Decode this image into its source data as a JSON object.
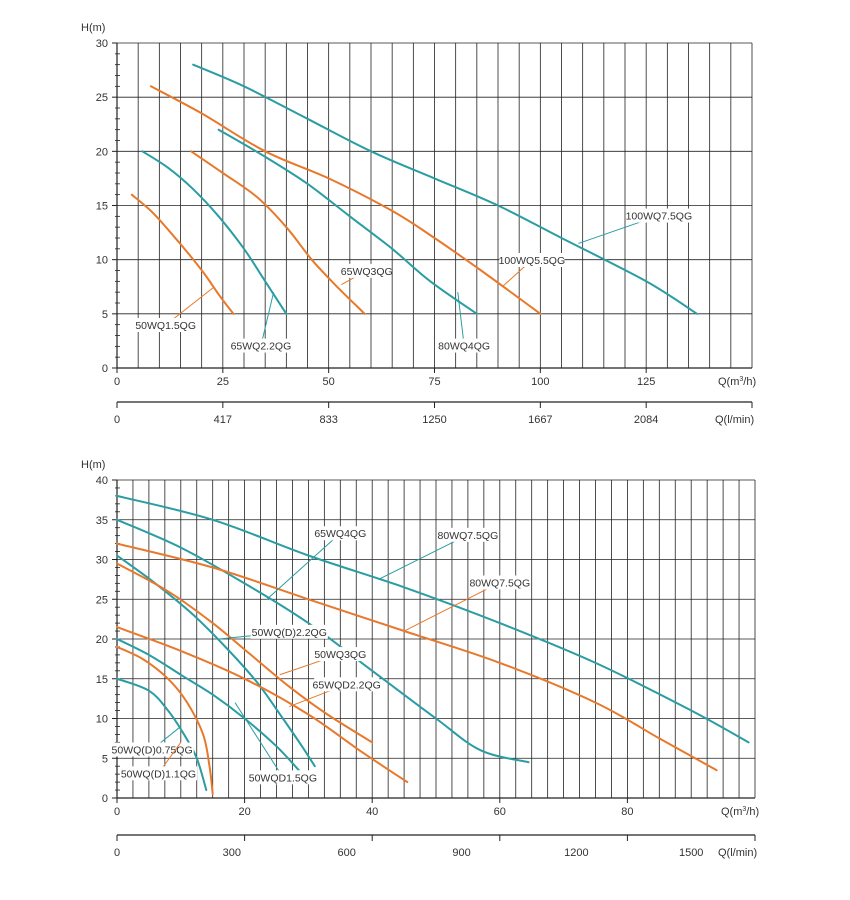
{
  "colors": {
    "teal": "#2a9da3",
    "orange": "#e8792b",
    "grid": "#222222",
    "text": "#333333"
  },
  "chart_data": [
    {
      "type": "line",
      "ylabel": "H(m)",
      "xlabel": "Q(m³/h)",
      "xlim": [
        0,
        150
      ],
      "ylim": [
        0,
        30
      ],
      "x_major_ticks": [
        0,
        25,
        50,
        75,
        100,
        125
      ],
      "y_major_ticks": [
        0,
        5,
        10,
        15,
        20,
        25,
        30
      ],
      "grid": true,
      "secondary_axis": {
        "label": "Q(l/min)",
        "ticks": [
          {
            "q": 0,
            "label": "0"
          },
          {
            "q": 25,
            "label": "417"
          },
          {
            "q": 50,
            "label": "833"
          },
          {
            "q": 75,
            "label": "1250"
          },
          {
            "q": 100,
            "label": "1667"
          },
          {
            "q": 125,
            "label": "2084"
          }
        ]
      },
      "series": [
        {
          "name": "50WQ1.5QG",
          "color": "orange",
          "points": [
            [
              3.5,
              16
            ],
            [
              8,
              14.5
            ],
            [
              12,
              12.8
            ],
            [
              17,
              10.5
            ],
            [
              21,
              8.5
            ],
            [
              24,
              6.8
            ],
            [
              27.5,
              5
            ]
          ],
          "label": {
            "text": "50WQ1.5QG",
            "at": [
              11.5,
              3.6
            ],
            "anchor_to": [
              23,
              7.5
            ]
          }
        },
        {
          "name": "65WQ2.2QG",
          "color": "teal",
          "points": [
            [
              6,
              20
            ],
            [
              12,
              18.5
            ],
            [
              18,
              16.5
            ],
            [
              24,
              14
            ],
            [
              30,
              11
            ],
            [
              35,
              8
            ],
            [
              40,
              5
            ]
          ],
          "label": {
            "text": "65WQ2.2QG",
            "at": [
              34,
              1.7
            ],
            "anchor_to": [
              37,
              7
            ]
          }
        },
        {
          "name": "65WQ3QG",
          "color": "orange",
          "points": [
            [
              17.5,
              20
            ],
            [
              25,
              18
            ],
            [
              33,
              15.8
            ],
            [
              40,
              13
            ],
            [
              46,
              10
            ],
            [
              52,
              7.5
            ],
            [
              58.5,
              5
            ]
          ],
          "label": {
            "text": "65WQ3QG",
            "at": [
              59,
              8.6
            ],
            "anchor_to": [
              53,
              7.7
            ]
          }
        },
        {
          "name": "80WQ4QG",
          "color": "teal",
          "points": [
            [
              24,
              22
            ],
            [
              35,
              19.5
            ],
            [
              45,
              17
            ],
            [
              55,
              14
            ],
            [
              65,
              11
            ],
            [
              74,
              8
            ],
            [
              85,
              5
            ]
          ],
          "label": {
            "text": "80WQ4QG",
            "at": [
              82,
              1.7
            ],
            "anchor_to": [
              80.5,
              7
            ]
          }
        },
        {
          "name": "100WQ5.5QG",
          "color": "orange",
          "points": [
            [
              8,
              26
            ],
            [
              20,
              23.5
            ],
            [
              35,
              20
            ],
            [
              50,
              17.5
            ],
            [
              65,
              14.5
            ],
            [
              75,
              12
            ],
            [
              86,
              9
            ],
            [
              100,
              5
            ]
          ],
          "label": {
            "text": "100WQ5.5QG",
            "at": [
              98,
              9.6
            ],
            "anchor_to": [
              91,
              7.5
            ]
          }
        },
        {
          "name": "100WQ7.5QG",
          "color": "teal",
          "points": [
            [
              18,
              28
            ],
            [
              30,
              26
            ],
            [
              45,
              23
            ],
            [
              60,
              20
            ],
            [
              75,
              17.5
            ],
            [
              90,
              15
            ],
            [
              105,
              12
            ],
            [
              125,
              8
            ],
            [
              137,
              5
            ]
          ],
          "label": {
            "text": "100WQ7.5QG",
            "at": [
              128,
              13.7
            ],
            "anchor_to": [
              109,
              11.5
            ]
          }
        }
      ]
    },
    {
      "type": "line",
      "ylabel": "H(m)",
      "xlabel": "Q(m³/h)",
      "xlim": [
        0,
        100
      ],
      "ylim": [
        0,
        40
      ],
      "x_major_ticks": [
        0,
        20,
        40,
        60,
        80
      ],
      "y_major_ticks": [
        0,
        5,
        10,
        15,
        20,
        25,
        30,
        35,
        40
      ],
      "grid": true,
      "secondary_axis": {
        "label": "Q(l/min)",
        "ticks": [
          {
            "q": 0,
            "label": "0"
          },
          {
            "q": 18,
            "label": "300"
          },
          {
            "q": 36,
            "label": "600"
          },
          {
            "q": 54,
            "label": "900"
          },
          {
            "q": 72,
            "label": "1200"
          },
          {
            "q": 90,
            "label": "1500"
          }
        ]
      },
      "series": [
        {
          "name": "50WQ(D)0.75QG",
          "color": "teal",
          "points": [
            [
              0,
              15
            ],
            [
              5,
              13.5
            ],
            [
              8,
              11
            ],
            [
              10.5,
              8
            ],
            [
              12.5,
              5
            ],
            [
              14,
              1
            ]
          ],
          "label": {
            "text": "50WQ(D)0.75QG",
            "at": [
              5.5,
              5.6
            ],
            "anchor_to": [
              10,
              9
            ]
          }
        },
        {
          "name": "50WQ(D)1.1QG",
          "color": "orange",
          "points": [
            [
              0,
              19
            ],
            [
              4,
              17.5
            ],
            [
              8,
              15
            ],
            [
              11,
              12
            ],
            [
              13.5,
              8
            ],
            [
              14.5,
              4
            ],
            [
              15,
              0.5
            ]
          ],
          "label": {
            "text": "50WQ(D)1.1QG",
            "at": [
              6.5,
              2.6
            ],
            "anchor_to": [
              10,
              7
            ]
          }
        },
        {
          "name": "50WQD1.5QG",
          "color": "teal",
          "points": [
            [
              0,
              20
            ],
            [
              5,
              18
            ],
            [
              10,
              15.5
            ],
            [
              15,
              13
            ],
            [
              20,
              10
            ],
            [
              25,
              6.5
            ],
            [
              28.5,
              3.5
            ]
          ],
          "label": {
            "text": "50WQD1.5QG",
            "at": [
              26,
              2.1
            ],
            "anchor_to": [
              18.5,
              12
            ]
          }
        },
        {
          "name": "50WQ(D)2.2QG",
          "color": "teal",
          "points": [
            [
              0,
              30.5
            ],
            [
              6,
              27
            ],
            [
              12,
              23
            ],
            [
              17,
              19
            ],
            [
              22,
              14.5
            ],
            [
              26,
              10
            ],
            [
              29,
              6.5
            ],
            [
              31,
              4
            ]
          ],
          "label": {
            "text": "50WQ(D)2.2QG",
            "at": [
              27,
              20.4
            ],
            "anchor_to": [
              16,
              20
            ]
          }
        },
        {
          "name": "50WQ3QG",
          "color": "orange",
          "points": [
            [
              0,
              29.5
            ],
            [
              8,
              26
            ],
            [
              15,
              22
            ],
            [
              21,
              18
            ],
            [
              27,
              14
            ],
            [
              33,
              10.5
            ],
            [
              40,
              7
            ]
          ],
          "label": {
            "text": "50WQ3QG",
            "at": [
              35,
              17.6
            ],
            "anchor_to": [
              25.5,
              15.5
            ]
          }
        },
        {
          "name": "65WQD2.2QG",
          "color": "orange",
          "points": [
            [
              0,
              21.5
            ],
            [
              10,
              18.5
            ],
            [
              20,
              15
            ],
            [
              30,
              10.5
            ],
            [
              38,
              6
            ],
            [
              45.5,
              2
            ]
          ],
          "label": {
            "text": "65WQD2.2QG",
            "at": [
              36,
              13.8
            ],
            "anchor_to": [
              27,
              11.5
            ]
          }
        },
        {
          "name": "65WQ4QG",
          "color": "teal",
          "points": [
            [
              0,
              35
            ],
            [
              10,
              31.5
            ],
            [
              20,
              27
            ],
            [
              30,
              22
            ],
            [
              40,
              16
            ],
            [
              50,
              10
            ],
            [
              57,
              6
            ],
            [
              64.5,
              4.5
            ]
          ],
          "label": {
            "text": "65WQ4QG",
            "at": [
              35,
              32.8
            ],
            "anchor_to": [
              23.5,
              25
            ]
          }
        },
        {
          "name": "80WQ7.5QG",
          "color": "orange",
          "points": [
            [
              0,
              32
            ],
            [
              15,
              29
            ],
            [
              30,
              25
            ],
            [
              45,
              21
            ],
            [
              60,
              17
            ],
            [
              75,
              12
            ],
            [
              85,
              7.5
            ],
            [
              94,
              3.5
            ]
          ],
          "label": {
            "text": "80WQ7.5QG",
            "at": [
              60,
              26.6
            ],
            "anchor_to": [
              45,
              21
            ]
          }
        },
        {
          "name": "80WQ7.5QG",
          "color": "teal",
          "points": [
            [
              0,
              38
            ],
            [
              15,
              35
            ],
            [
              30,
              30.5
            ],
            [
              45,
              26.5
            ],
            [
              60,
              22
            ],
            [
              75,
              17
            ],
            [
              90,
              11
            ],
            [
              99,
              7
            ]
          ],
          "label": {
            "text": "80WQ7.5QG",
            "at": [
              55,
              32.6
            ],
            "anchor_to": [
              41,
              27.5
            ]
          }
        }
      ]
    }
  ]
}
